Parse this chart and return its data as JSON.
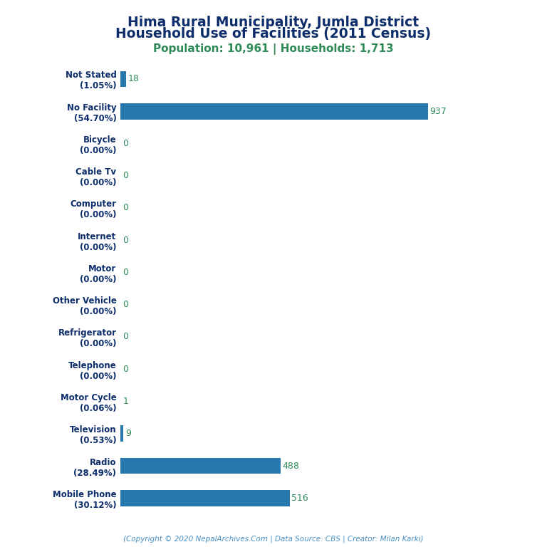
{
  "title_line1": "Hima Rural Municipality, Jumla District",
  "title_line2": "Household Use of Facilities (2011 Census)",
  "subtitle": "Population: 10,961 | Households: 1,713",
  "footer": "(Copyright © 2020 NepalArchives.Com | Data Source: CBS | Creator: Milan Karki)",
  "categories": [
    "Not Stated\n(1.05%)",
    "No Facility\n(54.70%)",
    "Bicycle\n(0.00%)",
    "Cable Tv\n(0.00%)",
    "Computer\n(0.00%)",
    "Internet\n(0.00%)",
    "Motor\n(0.00%)",
    "Other Vehicle\n(0.00%)",
    "Refrigerator\n(0.00%)",
    "Telephone\n(0.00%)",
    "Motor Cycle\n(0.06%)",
    "Television\n(0.53%)",
    "Radio\n(28.49%)",
    "Mobile Phone\n(30.12%)"
  ],
  "values": [
    18,
    937,
    0,
    0,
    0,
    0,
    0,
    0,
    0,
    0,
    1,
    9,
    488,
    516
  ],
  "bar_color": "#2878B0",
  "title_color": "#0D2D6B",
  "subtitle_color": "#2E8B57",
  "footer_color": "#4A90C4",
  "value_label_color": "#2E8B57",
  "background_color": "#FFFFFF",
  "xlim": [
    0,
    1100
  ],
  "bar_height": 0.5,
  "title_fontsize": 13.5,
  "subtitle_fontsize": 11,
  "ylabel_fontsize": 8.5,
  "value_fontsize": 9,
  "footer_fontsize": 7.5
}
